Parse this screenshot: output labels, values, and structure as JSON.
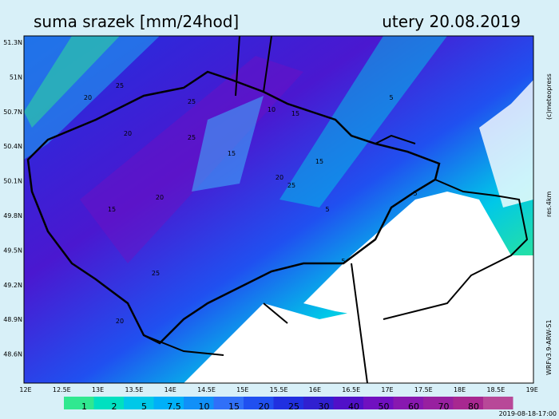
{
  "header": {
    "title": "suma srazek [mm/24hod]",
    "date": "utery 20.08.2019"
  },
  "lat_labels": [
    "51.3N",
    "51N",
    "50.7N",
    "50.4N",
    "50.1N",
    "49.8N",
    "49.5N",
    "49.2N",
    "48.9N",
    "48.6N"
  ],
  "lon_labels": [
    "12E",
    "12.5E",
    "13E",
    "13.5E",
    "14E",
    "14.5E",
    "15E",
    "15.5E",
    "16E",
    "16.5E",
    "17E",
    "17.5E",
    "18E",
    "18.5E",
    "19E"
  ],
  "contour_labels": [
    "25",
    "20",
    "25",
    "20",
    "25",
    "15",
    "20",
    "25",
    "15",
    "15",
    "20",
    "25",
    "5",
    "5",
    "5",
    "5",
    "10",
    "15",
    "20"
  ],
  "legend": {
    "labels": [
      1,
      2,
      5,
      7.5,
      10,
      15,
      20,
      25,
      30,
      40,
      50,
      60,
      70,
      80
    ],
    "colors": [
      "#30e890",
      "#00e0c0",
      "#00c8e8",
      "#00b0f8",
      "#1090f8",
      "#3070f8",
      "#2050f0",
      "#2030e0",
      "#3020d0",
      "#5010c8",
      "#7010c0",
      "#8818b0",
      "#9820a0",
      "#a82890",
      "#b84898"
    ]
  },
  "side": {
    "copyright": "(c)meteopress",
    "resolution": "res.4km",
    "model": "WRFv3.9-ARW-S1"
  },
  "footer": {
    "timestamp": "2019-08-18-17:00"
  }
}
